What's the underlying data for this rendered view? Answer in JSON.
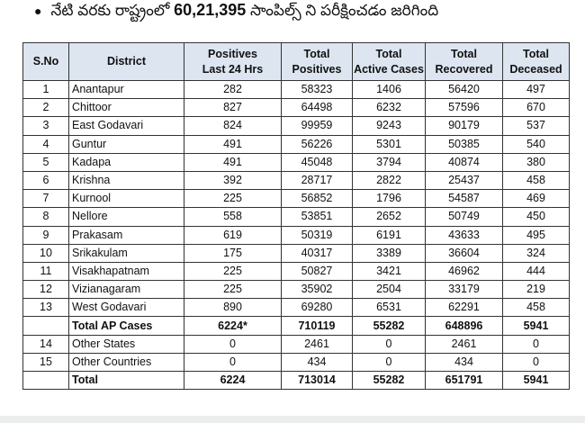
{
  "headline": {
    "prefix": "నేటి వరకు రాష్ట్రంలో",
    "count": "60,21,395",
    "suffix": "సాంపిల్స్ ని పరీక్షించడం జరిగింది"
  },
  "table": {
    "headers": [
      "S.No",
      "District",
      "Positives\nLast 24 Hrs",
      "Total\nPositives",
      "Total\nActive Cases",
      "Total\nRecovered",
      "Total\nDeceased"
    ],
    "rows": [
      {
        "sno": "1",
        "district": "Anantapur",
        "pos24": "282",
        "total_pos": "58323",
        "active": "1406",
        "recovered": "56420",
        "deceased": "497"
      },
      {
        "sno": "2",
        "district": "Chittoor",
        "pos24": "827",
        "total_pos": "64498",
        "active": "6232",
        "recovered": "57596",
        "deceased": "670"
      },
      {
        "sno": "3",
        "district": "East Godavari",
        "pos24": "824",
        "total_pos": "99959",
        "active": "9243",
        "recovered": "90179",
        "deceased": "537"
      },
      {
        "sno": "4",
        "district": "Guntur",
        "pos24": "491",
        "total_pos": "56226",
        "active": "5301",
        "recovered": "50385",
        "deceased": "540"
      },
      {
        "sno": "5",
        "district": "Kadapa",
        "pos24": "491",
        "total_pos": "45048",
        "active": "3794",
        "recovered": "40874",
        "deceased": "380"
      },
      {
        "sno": "6",
        "district": "Krishna",
        "pos24": "392",
        "total_pos": "28717",
        "active": "2822",
        "recovered": "25437",
        "deceased": "458"
      },
      {
        "sno": "7",
        "district": "Kurnool",
        "pos24": "225",
        "total_pos": "56852",
        "active": "1796",
        "recovered": "54587",
        "deceased": "469"
      },
      {
        "sno": "8",
        "district": "Nellore",
        "pos24": "558",
        "total_pos": "53851",
        "active": "2652",
        "recovered": "50749",
        "deceased": "450"
      },
      {
        "sno": "9",
        "district": "Prakasam",
        "pos24": "619",
        "total_pos": "50319",
        "active": "6191",
        "recovered": "43633",
        "deceased": "495"
      },
      {
        "sno": "10",
        "district": "Srikakulam",
        "pos24": "175",
        "total_pos": "40317",
        "active": "3389",
        "recovered": "36604",
        "deceased": "324"
      },
      {
        "sno": "11",
        "district": "Visakhapatnam",
        "pos24": "225",
        "total_pos": "50827",
        "active": "3421",
        "recovered": "46962",
        "deceased": "444"
      },
      {
        "sno": "12",
        "district": "Vizianagaram",
        "pos24": "225",
        "total_pos": "35902",
        "active": "2504",
        "recovered": "33179",
        "deceased": "219"
      },
      {
        "sno": "13",
        "district": "West Godavari",
        "pos24": "890",
        "total_pos": "69280",
        "active": "6531",
        "recovered": "62291",
        "deceased": "458"
      },
      {
        "sno": "",
        "district": "Total AP Cases",
        "pos24": "6224*",
        "total_pos": "710119",
        "active": "55282",
        "recovered": "648896",
        "deceased": "5941",
        "bold": true
      },
      {
        "sno": "14",
        "district": "Other States",
        "pos24": "0",
        "total_pos": "2461",
        "active": "0",
        "recovered": "2461",
        "deceased": "0"
      },
      {
        "sno": "15",
        "district": "Other Countries",
        "pos24": "0",
        "total_pos": "434",
        "active": "0",
        "recovered": "434",
        "deceased": "0"
      },
      {
        "sno": "",
        "district": "Total",
        "pos24": "6224",
        "total_pos": "713014",
        "active": "55282",
        "recovered": "651791",
        "deceased": "5941",
        "bold": true
      }
    ]
  }
}
